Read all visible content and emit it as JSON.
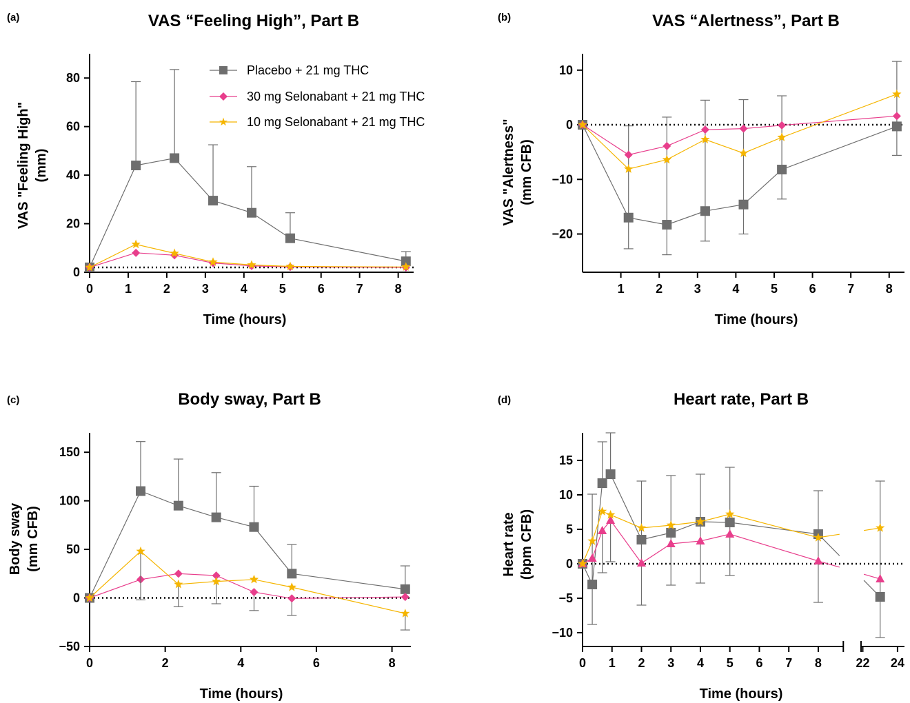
{
  "colors": {
    "placebo": "#6e6e6e",
    "selonabant_30": "#e83e8c",
    "selonabant_10": "#f5b500",
    "errorbar": "#6e6e6e",
    "axis": "#000000"
  },
  "legend": {
    "placement": "top-right of panel (a)",
    "entries": [
      {
        "label": "Placebo + 21 mg THC",
        "series": "placebo",
        "marker": "square"
      },
      {
        "label": "30 mg Selonabant + 21 mg THC",
        "series": "selonabant_30",
        "marker": "diamond"
      },
      {
        "label": "10 mg Selonabant + 21 mg THC",
        "series": "selonabant_10",
        "marker": "star"
      }
    ]
  },
  "chart_data": [
    {
      "panel": "(a)",
      "type": "line",
      "title": "VAS “Feeling High”, Part B",
      "xlabel": "Time (hours)",
      "ylabel": [
        "VAS \"Feeling High\"",
        "(mm)"
      ],
      "xlim": [
        0,
        8.4
      ],
      "ylim": [
        0,
        90
      ],
      "xticks": [
        0,
        1,
        2,
        3,
        4,
        5,
        6,
        7,
        8
      ],
      "yticks": [
        0,
        20,
        40,
        60,
        80
      ],
      "reference_line": 2,
      "series": [
        {
          "key": "placebo",
          "marker": "square",
          "x": [
            0,
            1.2,
            2.2,
            3.2,
            4.2,
            5.2,
            8.2
          ],
          "y": [
            2,
            44,
            47,
            29.5,
            24.5,
            14,
            4.5
          ],
          "err_hi": [
            null,
            78.5,
            83.5,
            52.5,
            43.5,
            24.5,
            8.5
          ]
        },
        {
          "key": "selonabant_30",
          "marker": "diamond",
          "x": [
            0,
            1.2,
            2.2,
            3.2,
            4.2,
            5.2,
            8.2
          ],
          "y": [
            2,
            8,
            7,
            3.8,
            2.6,
            2.2,
            2.0
          ]
        },
        {
          "key": "selonabant_10",
          "marker": "star",
          "x": [
            0,
            1.2,
            2.2,
            3.2,
            4.2,
            5.2,
            8.2
          ],
          "y": [
            2,
            11.5,
            7.8,
            4.2,
            3.0,
            2.4,
            2.2
          ]
        }
      ]
    },
    {
      "panel": "(b)",
      "type": "line",
      "title": "VAS “Alertness”, Part B",
      "xlabel": "Time (hours)",
      "ylabel": [
        "VAS \"Alertness\"",
        "(mm CFB)"
      ],
      "xlim": [
        0,
        8.4
      ],
      "ylim": [
        -27,
        13
      ],
      "xticks": [
        1,
        2,
        3,
        4,
        5,
        6,
        7,
        8
      ],
      "yticks": [
        -20,
        -10,
        0,
        10
      ],
      "reference_line": 0,
      "series": [
        {
          "key": "placebo",
          "marker": "square",
          "x": [
            0,
            1.2,
            2.2,
            3.2,
            4.2,
            5.2,
            8.2
          ],
          "y": [
            0,
            -17,
            -18.3,
            -15.8,
            -14.6,
            -8.2,
            -0.3
          ],
          "err_lo": [
            null,
            -22.7,
            -23.8,
            -21.3,
            -20.0,
            -13.6,
            -5.6
          ],
          "err_hi": [
            null,
            -0.2,
            1.4,
            4.5,
            4.6,
            5.3,
            11.6
          ]
        },
        {
          "key": "selonabant_30",
          "marker": "diamond",
          "x": [
            0,
            1.2,
            2.2,
            3.2,
            4.2,
            5.2,
            8.2
          ],
          "y": [
            0,
            -5.5,
            -3.9,
            -0.9,
            -0.7,
            -0.1,
            1.6
          ]
        },
        {
          "key": "selonabant_10",
          "marker": "star",
          "x": [
            0,
            1.2,
            2.2,
            3.2,
            4.2,
            5.2,
            8.2
          ],
          "y": [
            0,
            -8.1,
            -6.4,
            -2.7,
            -5.2,
            -2.3,
            5.6
          ]
        }
      ]
    },
    {
      "panel": "(c)",
      "type": "line",
      "title": "Body sway, Part B",
      "xlabel": "Time  (hours)",
      "ylabel": [
        "Body  sway",
        "(mm CFB)"
      ],
      "xlim": [
        0,
        8.5
      ],
      "ylim": [
        -50,
        170
      ],
      "xticks": [
        0,
        2,
        4,
        6,
        8
      ],
      "yticks": [
        -50,
        0,
        50,
        100,
        150
      ],
      "reference_line": 0,
      "series": [
        {
          "key": "placebo",
          "marker": "square",
          "x": [
            0,
            1.35,
            2.35,
            3.35,
            4.35,
            5.35,
            8.35
          ],
          "y": [
            0,
            110,
            95,
            83,
            73,
            25,
            9
          ],
          "err_hi": [
            null,
            161,
            143,
            129,
            115,
            55,
            33
          ]
        },
        {
          "key": "selonabant_30",
          "marker": "diamond",
          "x": [
            0,
            1.35,
            2.35,
            3.35,
            4.35,
            5.35,
            8.35
          ],
          "y": [
            0,
            19,
            25,
            23,
            6,
            -0.5,
            1
          ],
          "err_lo": [
            null,
            null,
            null,
            null,
            -13,
            -18,
            null
          ]
        },
        {
          "key": "selonabant_10",
          "marker": "star",
          "x": [
            0,
            1.35,
            2.35,
            3.35,
            4.35,
            5.35,
            8.35
          ],
          "y": [
            0,
            48,
            14,
            17,
            19,
            11,
            -16
          ],
          "err_lo": [
            null,
            -2,
            -9,
            -6,
            null,
            null,
            -33
          ]
        }
      ]
    },
    {
      "panel": "(d)",
      "type": "line",
      "title": "Heart rate, Part B",
      "xlabel": "Time  (hours)",
      "ylabel": [
        "Heart  rate",
        "(bpm CFB)"
      ],
      "xlim_main": [
        0,
        8.85
      ],
      "xlim_break": [
        21.9,
        24.4
      ],
      "ylim": [
        -12,
        19
      ],
      "xticks_main": [
        0,
        1,
        2,
        3,
        4,
        5,
        6,
        7,
        8
      ],
      "xticks_break": [
        22,
        24
      ],
      "yticks": [
        -10,
        -5,
        0,
        5,
        10,
        15
      ],
      "reference_line": 0,
      "series": [
        {
          "key": "placebo",
          "marker": "square",
          "x": [
            0,
            0.33,
            0.67,
            0.95,
            2,
            3,
            4,
            5,
            8,
            23
          ],
          "y": [
            0,
            -3,
            11.7,
            13,
            3.5,
            4.5,
            6.1,
            6.0,
            4.3,
            -4.8
          ],
          "err_lo": [
            null,
            -8.8,
            null,
            null,
            -6,
            -3.1,
            -2.8,
            -1.7,
            -5.6,
            -10.7
          ],
          "err_hi": [
            null,
            10.1,
            17.7,
            19,
            12,
            12.8,
            13,
            14,
            10.6,
            12
          ]
        },
        {
          "key": "selonabant_30",
          "marker": "triangle",
          "x": [
            0,
            0.33,
            0.67,
            0.95,
            2,
            3,
            4,
            5,
            8,
            23
          ],
          "y": [
            0,
            0.8,
            4.8,
            6.3,
            0.1,
            2.9,
            3.3,
            4.3,
            0.4,
            -2.2
          ],
          "err_lo": [
            null,
            null,
            -1.3,
            0.3,
            null,
            null,
            null,
            null,
            null,
            null
          ]
        },
        {
          "key": "selonabant_10",
          "marker": "star",
          "x": [
            0,
            0.33,
            0.67,
            0.95,
            2,
            3,
            4,
            5,
            8,
            23
          ],
          "y": [
            0,
            3.3,
            7.6,
            7.1,
            5.2,
            5.6,
            6.1,
            7.2,
            3.8,
            5.2
          ]
        }
      ]
    }
  ]
}
